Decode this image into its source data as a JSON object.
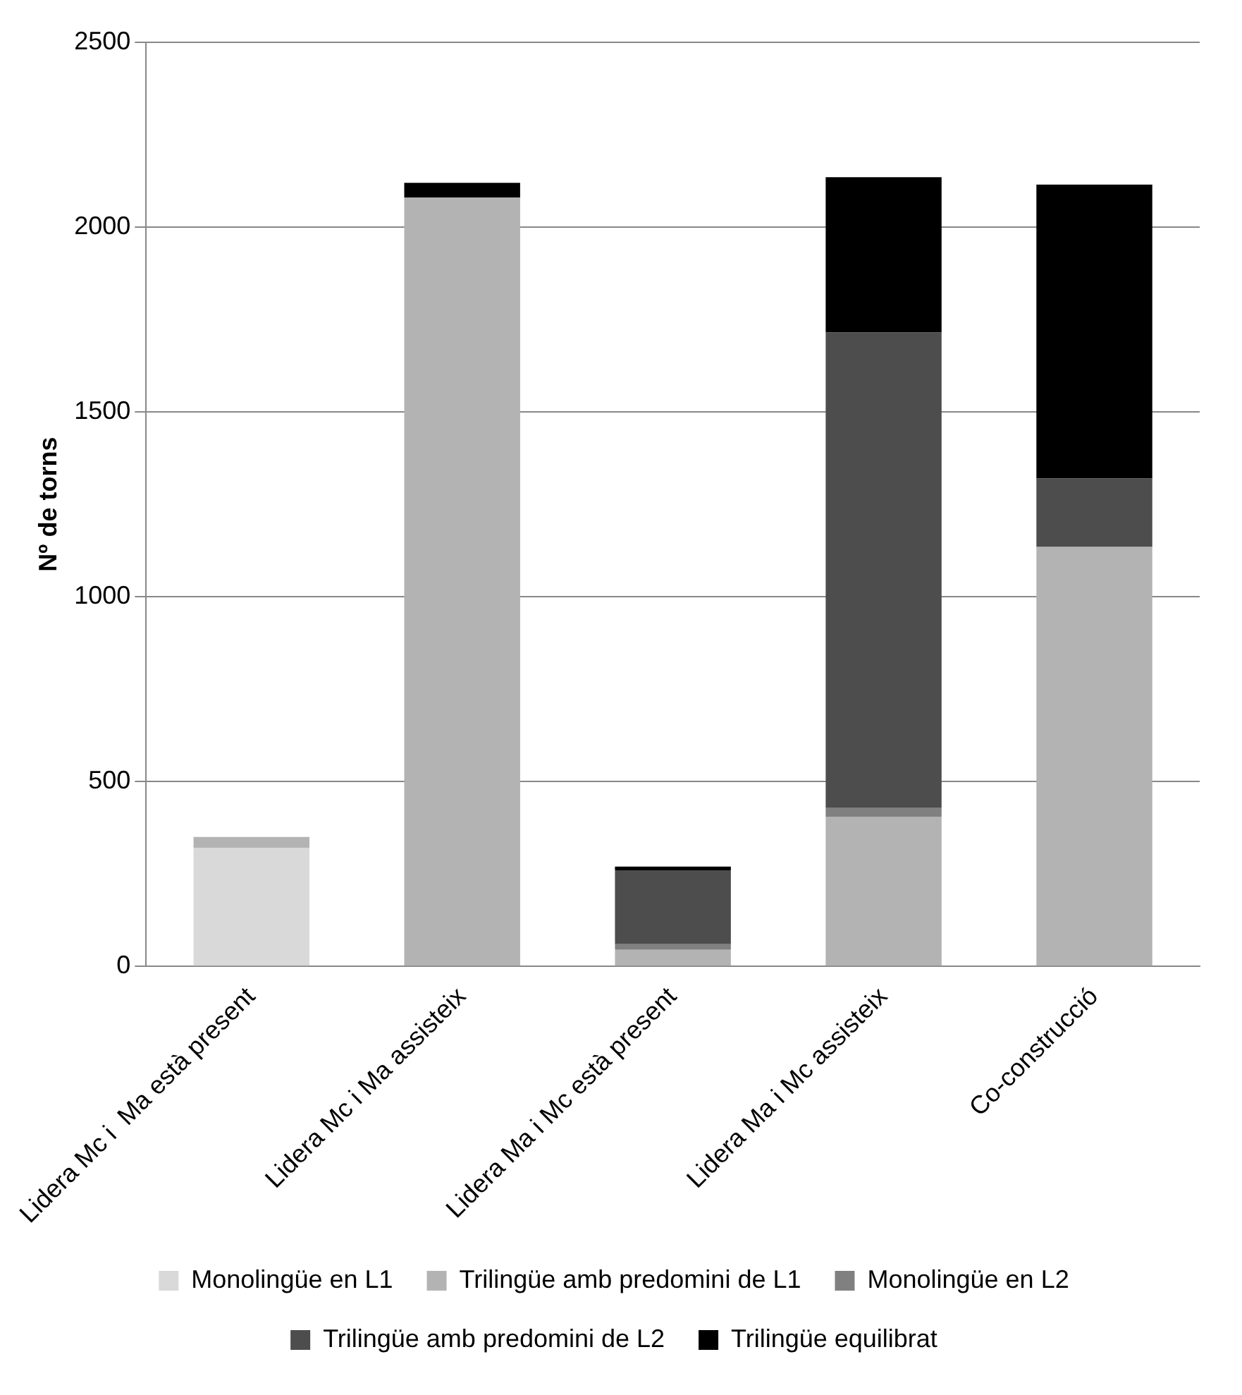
{
  "chart_data": {
    "type": "bar",
    "stacked": true,
    "ylabel": "Nº de torns",
    "categories": [
      "Lidera Mc i  Ma està present",
      "Lidera Mc i Ma assisteix",
      "Lidera Ma i Mc està present",
      "Lidera Ma i Mc assisteix",
      "Co-construcció"
    ],
    "series": [
      {
        "name": "Monolingüe en L1",
        "color": "#d9d9d9",
        "values": [
          320,
          0,
          0,
          0,
          0
        ]
      },
      {
        "name": "Trilingüe amb predomini de L1",
        "color": "#b3b3b3",
        "values": [
          30,
          2080,
          45,
          405,
          1135
        ]
      },
      {
        "name": "Monolingüe en L2",
        "color": "#808080",
        "values": [
          0,
          0,
          15,
          25,
          0
        ]
      },
      {
        "name": "Trilingüe amb predomini de L2",
        "color": "#4d4d4d",
        "values": [
          0,
          0,
          200,
          1285,
          185
        ]
      },
      {
        "name": "Trilingüe equilibrat",
        "color": "#000000",
        "values": [
          0,
          40,
          10,
          420,
          795
        ]
      }
    ],
    "ylim": [
      0,
      2500
    ],
    "yticks": [
      0,
      500,
      1000,
      1500,
      2000,
      2500
    ],
    "grid": "y",
    "legend": "bottom"
  }
}
